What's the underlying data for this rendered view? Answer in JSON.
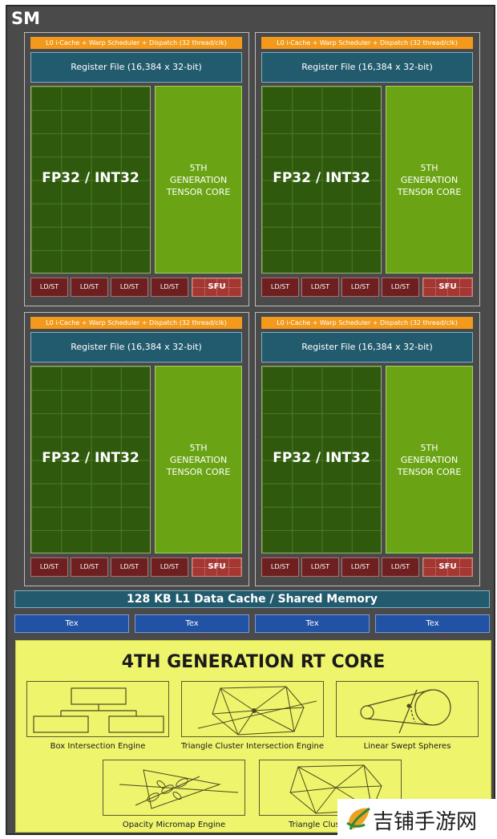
{
  "sm": {
    "title": "SM",
    "partition": {
      "l0_bar": "L0 i-Cache + Warp Scheduler + Dispatch (32 thread/clk)",
      "register_file": "Register File (16,384 x 32-bit)",
      "fp_unit": "FP32 / INT32",
      "tensor_lines": [
        "5TH",
        "GENERATION",
        "TENSOR CORE"
      ],
      "ldst": "LD/ST",
      "sfu": "SFU"
    },
    "l1_cache": "128 KB L1 Data Cache / Shared Memory",
    "tex": [
      "Tex",
      "Tex",
      "Tex",
      "Tex"
    ],
    "rt_core": {
      "title": "4TH GENERATION RT CORE",
      "engines": [
        "Box Intersection Engine",
        "Triangle Cluster Intersection Engine",
        "Linear Swept Spheres",
        "Opacity Micromap Engine",
        "Triangle Cluster Com"
      ]
    }
  },
  "watermark": {
    "text": "吉铺手游网"
  },
  "colors": {
    "l0": "#f39a1d",
    "register": "#235b6e",
    "fp": "#2f5a0e",
    "tensor": "#6aa414",
    "ldst": "#6e1f1f",
    "sfu": "#a43732",
    "tex": "#2152a4",
    "rt": "#eef46c"
  }
}
